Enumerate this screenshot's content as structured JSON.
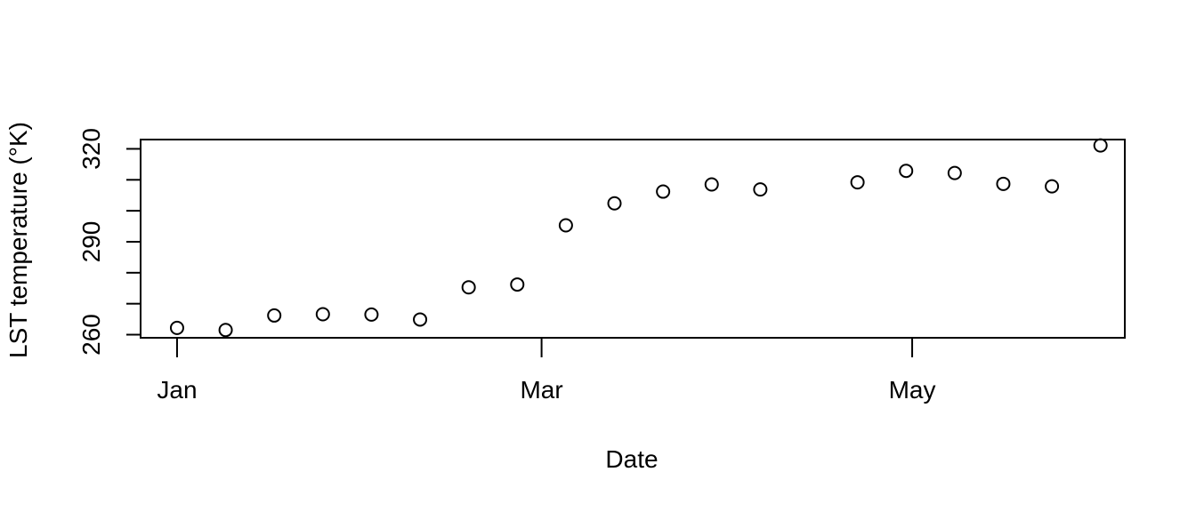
{
  "chart_data": {
    "type": "scatter",
    "title": "",
    "xlabel": "Date",
    "ylabel": "LST temperature (°K)",
    "x_tick_labels": [
      "Jan",
      "Mar",
      "May"
    ],
    "x_tick_dates": [
      "2016-01-01",
      "2016-03-01",
      "2016-05-01"
    ],
    "y_ticks": [
      260,
      270,
      280,
      290,
      300,
      310,
      320
    ],
    "y_tick_labels": [
      "260",
      "290",
      "320"
    ],
    "xlim": [
      "2015-12-26",
      "2016-06-05"
    ],
    "ylim": [
      259,
      323
    ],
    "grid": false,
    "marker": "open-circle",
    "series": [
      {
        "points": [
          {
            "x": "2016-01-01",
            "y": 262.2
          },
          {
            "x": "2016-01-09",
            "y": 261.5
          },
          {
            "x": "2016-01-17",
            "y": 266.2
          },
          {
            "x": "2016-01-25",
            "y": 266.6
          },
          {
            "x": "2016-02-02",
            "y": 266.5
          },
          {
            "x": "2016-02-10",
            "y": 264.9
          },
          {
            "x": "2016-02-18",
            "y": 275.3
          },
          {
            "x": "2016-02-26",
            "y": 276.2
          },
          {
            "x": "2016-03-05",
            "y": 295.3
          },
          {
            "x": "2016-03-13",
            "y": 302.4
          },
          {
            "x": "2016-03-21",
            "y": 306.2
          },
          {
            "x": "2016-03-29",
            "y": 308.5
          },
          {
            "x": "2016-04-06",
            "y": 306.9
          },
          {
            "x": "2016-04-22",
            "y": 309.2
          },
          {
            "x": "2016-04-30",
            "y": 312.9
          },
          {
            "x": "2016-05-08",
            "y": 312.2
          },
          {
            "x": "2016-05-16",
            "y": 308.7
          },
          {
            "x": "2016-05-24",
            "y": 307.9
          },
          {
            "x": "2016-06-01",
            "y": 321.1
          }
        ]
      }
    ]
  }
}
